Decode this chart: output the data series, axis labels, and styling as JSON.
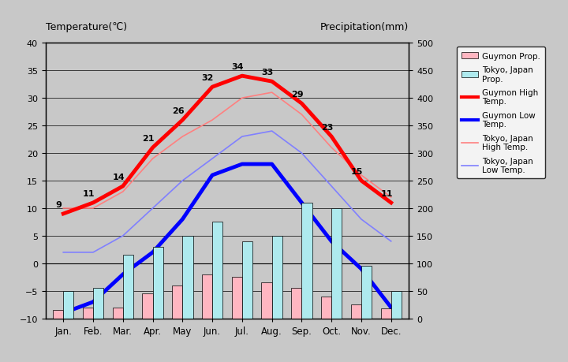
{
  "months": [
    "Jan.",
    "Feb.",
    "Mar.",
    "Apr.",
    "May",
    "Jun.",
    "Jul.",
    "Aug.",
    "Sep.",
    "Oct.",
    "Nov.",
    "Dec."
  ],
  "guymon_high": [
    9,
    11,
    14,
    21,
    26,
    32,
    34,
    33,
    29,
    23,
    15,
    11
  ],
  "guymon_low": [
    -9,
    -7,
    -2,
    2,
    8,
    16,
    18,
    18,
    11,
    4,
    -1,
    -8
  ],
  "tokyo_high": [
    10,
    10,
    13,
    19,
    23,
    26,
    30,
    31,
    27,
    21,
    16,
    12
  ],
  "tokyo_low": [
    2,
    2,
    5,
    10,
    15,
    19,
    23,
    24,
    20,
    14,
    8,
    4
  ],
  "guymon_precip": [
    15,
    20,
    20,
    45,
    60,
    80,
    75,
    65,
    55,
    40,
    25,
    18
  ],
  "tokyo_precip": [
    50,
    55,
    115,
    130,
    150,
    175,
    140,
    150,
    210,
    200,
    95,
    50
  ],
  "guymon_high_color": "#FF0000",
  "guymon_low_color": "#0000FF",
  "tokyo_high_color": "#FF8080",
  "tokyo_low_color": "#8080FF",
  "guymon_precip_color": "#FFB6C1",
  "tokyo_precip_color": "#AEEAEE",
  "bg_color": "#C8C8C8",
  "plot_bg_color": "#C8C8C8",
  "temp_ylim": [
    -10,
    40
  ],
  "precip_ylim": [
    0,
    500
  ],
  "title_left": "Temperature(℃)",
  "title_right": "Precipitation(mm)",
  "guymon_high_annotations": [
    9,
    11,
    14,
    21,
    26,
    32,
    34,
    33,
    29,
    23,
    15,
    11
  ]
}
